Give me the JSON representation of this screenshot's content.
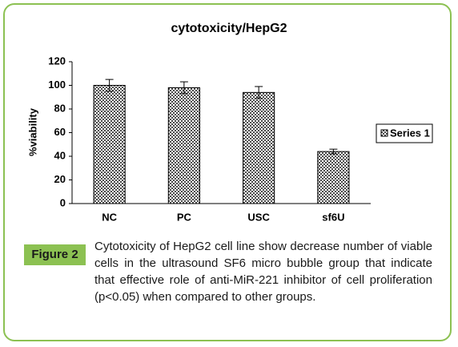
{
  "chart_data": {
    "type": "bar",
    "title": "cytotoxicity/HepG2",
    "y_label": "%viability",
    "categories": [
      "NC",
      "PC",
      "USC",
      "sf6U"
    ],
    "series": [
      {
        "name": "Series 1",
        "color": "#4d4d4d",
        "values": [
          100,
          98,
          94,
          44
        ],
        "errors": [
          5,
          5,
          5,
          2
        ]
      }
    ],
    "ylim": [
      0,
      120
    ],
    "yticks": [
      0,
      20,
      40,
      60,
      80,
      100,
      120
    ],
    "legend": "right"
  },
  "figure_label": "Figure 2",
  "caption": "Cytotoxicity of HepG2 cell line show decrease number of viable cells in the ultrasound SF6 micro bubble group that indicate that effective role of anti-MiR-221 inhibitor of cell proliferation (p<0.05) when compared to other groups."
}
